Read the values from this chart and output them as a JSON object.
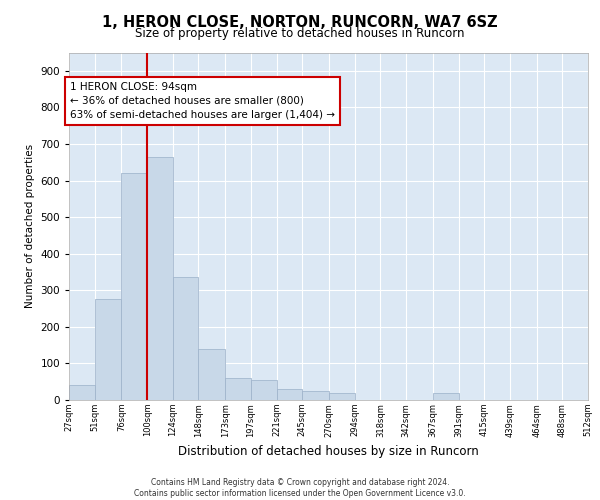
{
  "title": "1, HERON CLOSE, NORTON, RUNCORN, WA7 6SZ",
  "subtitle": "Size of property relative to detached houses in Runcorn",
  "xlabel": "Distribution of detached houses by size in Runcorn",
  "ylabel": "Number of detached properties",
  "bar_color": "#c8d8e8",
  "bar_edge_color": "#9ab0c8",
  "background_color": "#dce8f4",
  "grid_color": "#ffffff",
  "vline_color": "#cc0000",
  "vline_x": 100,
  "annotation_text": "1 HERON CLOSE: 94sqm\n← 36% of detached houses are smaller (800)\n63% of semi-detached houses are larger (1,404) →",
  "annotation_box_color": "#ffffff",
  "annotation_box_edge": "#cc0000",
  "bins": [
    27,
    51,
    76,
    100,
    124,
    148,
    173,
    197,
    221,
    245,
    270,
    294,
    318,
    342,
    367,
    391,
    415,
    439,
    464,
    488,
    512
  ],
  "bin_labels": [
    "27sqm",
    "51sqm",
    "76sqm",
    "100sqm",
    "124sqm",
    "148sqm",
    "173sqm",
    "197sqm",
    "221sqm",
    "245sqm",
    "270sqm",
    "294sqm",
    "318sqm",
    "342sqm",
    "367sqm",
    "391sqm",
    "415sqm",
    "439sqm",
    "464sqm",
    "488sqm",
    "512sqm"
  ],
  "bar_heights": [
    40,
    275,
    620,
    665,
    335,
    140,
    60,
    55,
    30,
    25,
    20,
    0,
    0,
    0,
    20,
    0,
    0,
    0,
    0,
    0
  ],
  "ylim": [
    0,
    950
  ],
  "yticks": [
    0,
    100,
    200,
    300,
    400,
    500,
    600,
    700,
    800,
    900
  ],
  "footer_line1": "Contains HM Land Registry data © Crown copyright and database right 2024.",
  "footer_line2": "Contains public sector information licensed under the Open Government Licence v3.0."
}
